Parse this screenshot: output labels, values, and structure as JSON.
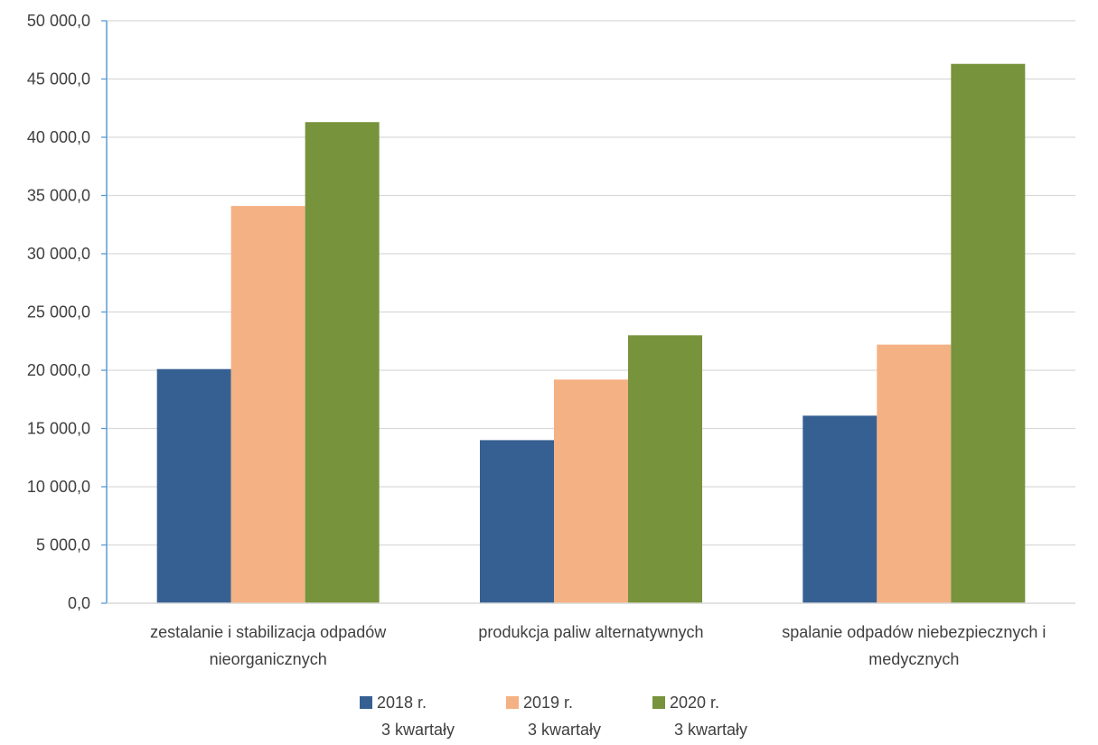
{
  "chart_data": {
    "type": "bar",
    "title": "",
    "xlabel": "",
    "ylabel": "",
    "ylim": [
      0,
      50000
    ],
    "yticks": [
      "0,0",
      "5 000,0",
      "10 000,0",
      "15 000,0",
      "20 000,0",
      "25 000,0",
      "30 000,0",
      "35 000,0",
      "40 000,0",
      "45 000,0",
      "50 000,0"
    ],
    "ytick_values": [
      0,
      5000,
      10000,
      15000,
      20000,
      25000,
      30000,
      35000,
      40000,
      45000,
      50000
    ],
    "grid": true,
    "legend_position": "bottom",
    "categories": [
      [
        "zestalanie i stabilizacja odpadów",
        "nieorganicznych"
      ],
      [
        "produkcja paliw alternatywnych"
      ],
      [
        "spalanie odpadów niebezpiecznych i",
        "medycznych"
      ]
    ],
    "series": [
      {
        "name": [
          "2018 r.",
          "3 kwartały"
        ],
        "color": "#376092",
        "values": [
          20100,
          14000,
          16100
        ]
      },
      {
        "name": [
          "2019 r.",
          "3 kwartały"
        ],
        "color": "#F4B183",
        "values": [
          34100,
          19200,
          22200
        ]
      },
      {
        "name": [
          "2020 r.",
          "3 kwartały"
        ],
        "color": "#77933C",
        "values": [
          41300,
          23000,
          46300
        ]
      }
    ],
    "colors": {
      "axis": "#5B9BD5",
      "grid": "#D9D9D9",
      "text": "#404040"
    }
  }
}
